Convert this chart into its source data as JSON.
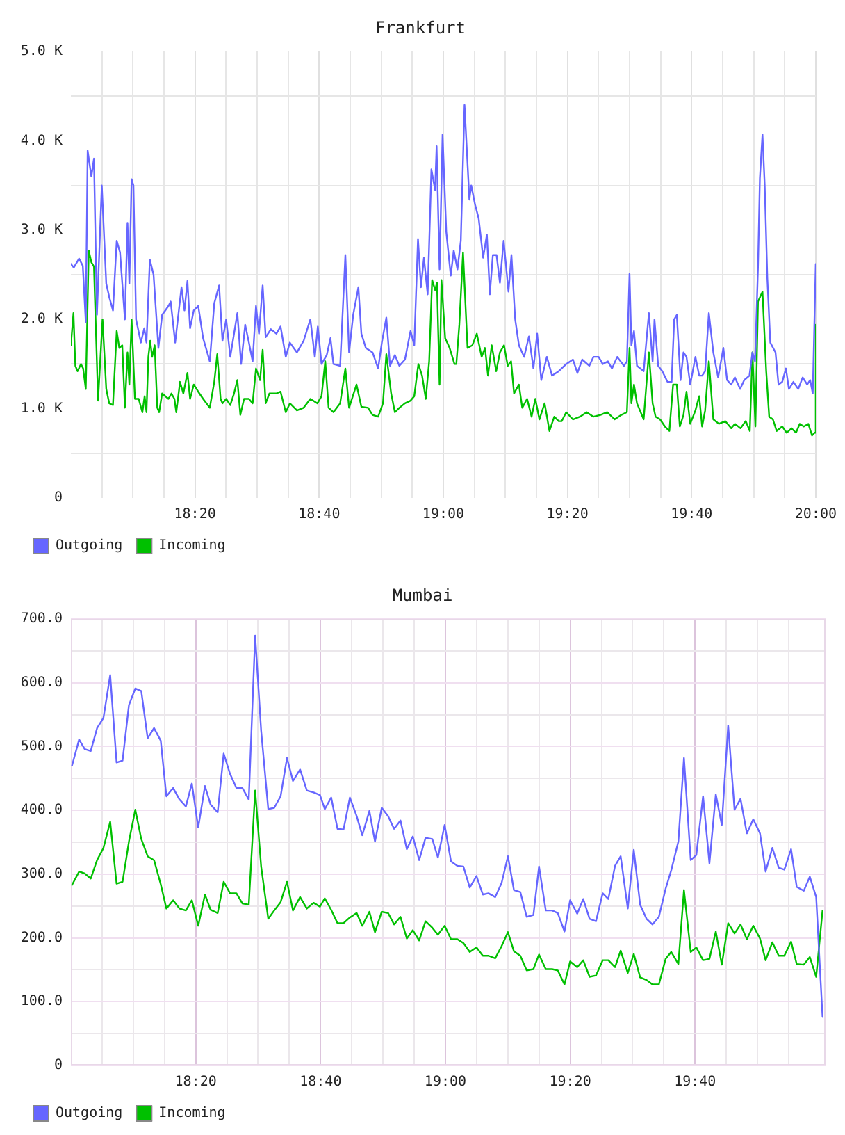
{
  "chart_data": [
    {
      "type": "line",
      "title": "Frankfurt",
      "xlim": [
        18,
        20
      ],
      "xticks": [
        {
          "value": 18.0833,
          "label": null
        },
        {
          "value": 18.1667,
          "label": null
        },
        {
          "value": 18.25,
          "label": null
        },
        {
          "value": 18.3333,
          "label": "18:20"
        },
        {
          "value": 18.4167,
          "label": null
        },
        {
          "value": 18.5,
          "label": null
        },
        {
          "value": 18.5833,
          "label": null
        },
        {
          "value": 18.6667,
          "label": "18:40"
        },
        {
          "value": 18.75,
          "label": null
        },
        {
          "value": 18.8333,
          "label": null
        },
        {
          "value": 18.9167,
          "label": null
        },
        {
          "value": 19,
          "label": "19:00"
        },
        {
          "value": 19.0833,
          "label": null
        },
        {
          "value": 19.1667,
          "label": null
        },
        {
          "value": 19.25,
          "label": null
        },
        {
          "value": 19.3333,
          "label": "19:20"
        },
        {
          "value": 19.4167,
          "label": null
        },
        {
          "value": 19.5,
          "label": null
        },
        {
          "value": 19.5833,
          "label": null
        },
        {
          "value": 19.6667,
          "label": "19:40"
        },
        {
          "value": 19.75,
          "label": null
        },
        {
          "value": 19.8333,
          "label": null
        },
        {
          "value": 19.9167,
          "label": null
        },
        {
          "value": 20,
          "label": "20:00"
        }
      ],
      "ylim": [
        0,
        5000
      ],
      "yticks": [
        0,
        {
          "value": 500,
          "label": null
        },
        {
          "value": 1000,
          "label": "1.0 K"
        },
        {
          "value": 1500,
          "label": null
        },
        {
          "value": 2000,
          "label": "2.0 K"
        },
        {
          "value": 2500,
          "label": null
        },
        {
          "value": 3000,
          "label": "3.0 K"
        },
        {
          "value": 3500,
          "label": null
        },
        {
          "value": 4000,
          "label": "4.0 K"
        },
        {
          "value": 4500,
          "label": null
        },
        {
          "value": 5000,
          "label": "5.0 K"
        }
      ],
      "grid": true,
      "legend": "bottom left",
      "series": [
        {
          "name": "Outgoing",
          "color": "#6666ff",
          "x": [
            18,
            18.008,
            18.022,
            18.032,
            18.04,
            18.045,
            18.055,
            18.062,
            18.07,
            18.083,
            18.095,
            18.103,
            18.113,
            18.123,
            18.132,
            18.145,
            18.152,
            18.157,
            18.163,
            18.168,
            18.175,
            18.188,
            18.197,
            18.203,
            18.212,
            18.222,
            18.235,
            18.245,
            18.262,
            18.268,
            18.28,
            18.297,
            18.305,
            18.313,
            18.32,
            18.33,
            18.342,
            18.355,
            18.373,
            18.385,
            18.398,
            18.407,
            18.417,
            18.428,
            18.447,
            18.457,
            18.468,
            18.478,
            18.488,
            18.497,
            18.505,
            18.515,
            18.523,
            18.537,
            18.552,
            18.563,
            18.577,
            18.588,
            18.607,
            18.625,
            18.643,
            18.655,
            18.663,
            18.673,
            18.687,
            18.697,
            18.705,
            18.723,
            18.737,
            18.747,
            18.758,
            18.772,
            18.78,
            18.792,
            18.81,
            18.825,
            18.835,
            18.847,
            18.857,
            18.87,
            18.882,
            18.897,
            18.912,
            18.922,
            18.932,
            18.94,
            18.948,
            18.958,
            18.968,
            18.978,
            18.982,
            18.99,
            18.998,
            19.008,
            19.02,
            19.028,
            19.038,
            19.047,
            19.057,
            19.07,
            19.075,
            19.085,
            19.095,
            19.107,
            19.117,
            19.125,
            19.133,
            19.143,
            19.152,
            19.162,
            19.175,
            19.183,
            19.193,
            19.203,
            19.217,
            19.23,
            19.242,
            19.252,
            19.263,
            19.278,
            19.292,
            19.31,
            19.33,
            19.348,
            19.36,
            19.373,
            19.392,
            19.403,
            19.417,
            19.428,
            19.442,
            19.453,
            19.467,
            19.485,
            19.493,
            19.5,
            19.505,
            19.512,
            19.52,
            19.538,
            19.552,
            19.562,
            19.567,
            19.577,
            19.588,
            19.602,
            19.613,
            19.62,
            19.627,
            19.637,
            19.645,
            19.653,
            19.663,
            19.677,
            19.687,
            19.695,
            19.703,
            19.713,
            19.725,
            19.738,
            19.752,
            19.762,
            19.773,
            19.783,
            19.797,
            19.808,
            19.822,
            19.83,
            19.837,
            19.845,
            19.85,
            19.857,
            19.863,
            19.87,
            19.878,
            19.892,
            19.9,
            19.91,
            19.92,
            19.928,
            19.94,
            19.953,
            19.965,
            19.977,
            19.985,
            19.992,
            20
          ],
          "values": [
            2620,
            2580,
            2680,
            2600,
            1970,
            3890,
            3600,
            3800,
            2050,
            3500,
            2400,
            2250,
            2100,
            2880,
            2750,
            2000,
            3080,
            2400,
            3570,
            3500,
            2000,
            1740,
            1900,
            1740,
            2670,
            2500,
            1680,
            2050,
            2150,
            2200,
            1740,
            2360,
            2100,
            2430,
            1900,
            2100,
            2150,
            1790,
            1530,
            2180,
            2380,
            1760,
            2000,
            1580,
            2070,
            1500,
            1940,
            1740,
            1530,
            2150,
            1840,
            2380,
            1800,
            1890,
            1840,
            1920,
            1580,
            1740,
            1630,
            1760,
            2000,
            1580,
            1920,
            1500,
            1600,
            1790,
            1500,
            1480,
            2720,
            1630,
            2050,
            2360,
            1840,
            1680,
            1630,
            1450,
            1740,
            2020,
            1480,
            1600,
            1480,
            1550,
            1870,
            1710,
            2900,
            2360,
            2690,
            2280,
            3680,
            3450,
            3940,
            2560,
            4070,
            2980,
            2490,
            2770,
            2560,
            2880,
            4400,
            3340,
            3500,
            3290,
            3130,
            2690,
            2950,
            2280,
            2720,
            2720,
            2410,
            2880,
            2310,
            2720,
            2000,
            1710,
            1580,
            1810,
            1450,
            1840,
            1320,
            1580,
            1370,
            1420,
            1500,
            1550,
            1400,
            1550,
            1480,
            1580,
            1580,
            1500,
            1530,
            1450,
            1580,
            1480,
            1530,
            2510,
            1710,
            1870,
            1480,
            1420,
            2070,
            1530,
            2000,
            1480,
            1420,
            1300,
            1300,
            2000,
            2050,
            1320,
            1630,
            1580,
            1270,
            1580,
            1370,
            1370,
            1420,
            2070,
            1630,
            1350,
            1680,
            1320,
            1270,
            1350,
            1220,
            1320,
            1370,
            1630,
            1530,
            2590,
            3580,
            4070,
            3500,
            2460,
            1740,
            1630,
            1270,
            1300,
            1450,
            1220,
            1300,
            1220,
            1350,
            1270,
            1320,
            1170,
            2620
          ]
        },
        {
          "name": "Incoming",
          "color": "#00c000",
          "x": [
            18,
            18.007,
            18.012,
            18.018,
            18.027,
            18.033,
            18.04,
            18.048,
            18.055,
            18.062,
            18.073,
            18.085,
            18.095,
            18.103,
            18.113,
            18.123,
            18.13,
            18.138,
            18.145,
            18.152,
            18.157,
            18.163,
            18.172,
            18.182,
            18.192,
            18.198,
            18.203,
            18.208,
            18.213,
            18.218,
            18.225,
            18.232,
            18.237,
            18.245,
            18.262,
            18.27,
            18.278,
            18.283,
            18.293,
            18.302,
            18.313,
            18.32,
            18.33,
            18.342,
            18.355,
            18.373,
            18.385,
            18.393,
            18.402,
            18.407,
            18.417,
            18.428,
            18.438,
            18.447,
            18.455,
            18.465,
            18.478,
            18.488,
            18.497,
            18.508,
            18.515,
            18.523,
            18.533,
            18.552,
            18.563,
            18.577,
            18.588,
            18.607,
            18.625,
            18.643,
            18.662,
            18.673,
            18.683,
            18.692,
            18.705,
            18.723,
            18.737,
            18.747,
            18.767,
            18.78,
            18.798,
            18.81,
            18.825,
            18.838,
            18.847,
            18.86,
            18.87,
            18.882,
            18.897,
            18.912,
            18.922,
            18.933,
            18.943,
            18.953,
            18.962,
            18.97,
            18.978,
            18.983,
            18.99,
            18.995,
            19.005,
            19.017,
            19.03,
            19.035,
            19.043,
            19.053,
            19.065,
            19.078,
            19.09,
            19.103,
            19.112,
            19.12,
            19.13,
            19.142,
            19.152,
            19.163,
            19.173,
            19.182,
            19.19,
            19.203,
            19.212,
            19.225,
            19.237,
            19.247,
            19.258,
            19.272,
            19.285,
            19.298,
            19.31,
            19.318,
            19.33,
            19.348,
            19.367,
            19.385,
            19.403,
            19.422,
            19.44,
            19.46,
            19.478,
            19.493,
            19.5,
            19.505,
            19.512,
            19.52,
            19.538,
            19.552,
            19.562,
            19.57,
            19.582,
            19.595,
            19.607,
            19.617,
            19.627,
            19.635,
            19.645,
            19.653,
            19.663,
            19.677,
            19.687,
            19.695,
            19.703,
            19.713,
            19.725,
            19.74,
            19.757,
            19.773,
            19.783,
            19.798,
            19.812,
            19.823,
            19.83,
            19.838,
            19.845,
            19.857,
            19.867,
            19.875,
            19.885,
            19.895,
            19.91,
            19.922,
            19.935,
            19.947,
            19.957,
            19.968,
            19.98,
            19.99,
            19.997,
            20
          ],
          "values": [
            1710,
            2070,
            1480,
            1420,
            1500,
            1450,
            1220,
            2770,
            2640,
            2590,
            1090,
            2000,
            1220,
            1060,
            1040,
            1870,
            1680,
            1710,
            1010,
            1630,
            1270,
            2000,
            1110,
            1110,
            960,
            1140,
            960,
            1580,
            1760,
            1580,
            1710,
            1010,
            960,
            1170,
            1110,
            1170,
            1110,
            960,
            1300,
            1170,
            1400,
            1110,
            1270,
            1190,
            1110,
            1010,
            1300,
            1610,
            1110,
            1060,
            1110,
            1040,
            1170,
            1320,
            930,
            1110,
            1110,
            1060,
            1450,
            1320,
            1660,
            1060,
            1170,
            1170,
            1190,
            960,
            1060,
            980,
            1010,
            1110,
            1060,
            1140,
            1530,
            1010,
            960,
            1060,
            1450,
            1010,
            1270,
            1020,
            1010,
            930,
            910,
            1060,
            1610,
            1170,
            960,
            1010,
            1060,
            1090,
            1140,
            1500,
            1370,
            1110,
            1530,
            2440,
            2330,
            2410,
            1270,
            2440,
            1790,
            1680,
            1500,
            1500,
            1940,
            2750,
            1680,
            1710,
            1840,
            1580,
            1680,
            1370,
            1710,
            1420,
            1630,
            1710,
            1480,
            1530,
            1170,
            1270,
            1010,
            1110,
            910,
            1110,
            880,
            1060,
            750,
            910,
            860,
            860,
            960,
            880,
            910,
            960,
            910,
            930,
            960,
            880,
            930,
            960,
            1680,
            1060,
            1270,
            1060,
            880,
            1630,
            1060,
            910,
            880,
            800,
            750,
            1270,
            1270,
            800,
            930,
            1190,
            830,
            980,
            1140,
            800,
            980,
            1530,
            880,
            830,
            860,
            780,
            830,
            780,
            860,
            750,
            1630,
            800,
            2200,
            2310,
            1420,
            910,
            880,
            750,
            800,
            730,
            780,
            730,
            830,
            800,
            830,
            700,
            730,
            1940
          ]
        }
      ]
    },
    {
      "type": "line",
      "title": "Mumbai",
      "x": [
        18.003,
        18.022,
        18.037,
        18.053,
        18.07,
        18.087,
        18.105,
        18.122,
        18.138,
        18.155,
        18.172,
        18.188,
        18.205,
        18.222,
        18.24,
        18.255,
        18.273,
        18.29,
        18.307,
        18.323,
        18.34,
        18.358,
        18.373,
        18.392,
        18.408,
        18.425,
        18.442,
        18.458,
        18.475,
        18.492,
        18.508,
        18.527,
        18.543,
        18.56,
        18.577,
        18.593,
        18.612,
        18.63,
        18.648,
        18.665,
        18.678,
        18.695,
        18.712,
        18.728,
        18.745,
        18.763,
        18.778,
        18.797,
        18.812,
        18.83,
        18.847,
        18.863,
        18.88,
        18.897,
        18.913,
        18.93,
        18.947,
        18.965,
        18.98,
        18.998,
        19.015,
        19.032,
        19.048,
        19.065,
        19.083,
        19.1,
        19.115,
        19.133,
        19.15,
        19.167,
        19.183,
        19.2,
        19.217,
        19.235,
        19.25,
        19.268,
        19.285,
        19.3,
        19.318,
        19.333,
        19.352,
        19.368,
        19.385,
        19.402,
        19.42,
        19.435,
        19.453,
        19.468,
        19.487,
        19.503,
        19.52,
        19.537,
        19.553,
        19.57,
        19.588,
        19.603,
        19.622,
        19.637,
        19.655,
        19.67,
        19.688,
        19.705,
        19.722,
        19.738,
        19.755,
        19.772,
        19.788,
        19.805,
        19.822,
        19.84,
        19.855,
        19.873,
        19.89,
        19.905,
        19.923,
        19.938,
        19.957,
        19.973,
        19.99,
        20.007
      ],
      "xlim": [
        18,
        20.015
      ],
      "xticks": [
        {
          "value": 18.0833,
          "label": null
        },
        {
          "value": 18.1667,
          "label": null
        },
        {
          "value": 18.25,
          "label": null
        },
        {
          "value": 18.3333,
          "label": "18:20"
        },
        {
          "value": 18.4167,
          "label": null
        },
        {
          "value": 18.5,
          "label": null
        },
        {
          "value": 18.5833,
          "label": null
        },
        {
          "value": 18.6667,
          "label": "18:40"
        },
        {
          "value": 18.75,
          "label": null
        },
        {
          "value": 18.8333,
          "label": null
        },
        {
          "value": 18.9167,
          "label": null
        },
        {
          "value": 19,
          "label": "19:00"
        },
        {
          "value": 19.0833,
          "label": null
        },
        {
          "value": 19.1667,
          "label": null
        },
        {
          "value": 19.25,
          "label": null
        },
        {
          "value": 19.3333,
          "label": "19:20"
        },
        {
          "value": 19.4167,
          "label": null
        },
        {
          "value": 19.5,
          "label": null
        },
        {
          "value": 19.5833,
          "label": null
        },
        {
          "value": 19.6667,
          "label": "19:40"
        },
        {
          "value": 19.75,
          "label": null
        },
        {
          "value": 19.8333,
          "label": null
        },
        {
          "value": 19.9167,
          "label": null
        }
      ],
      "ylim": [
        0,
        700
      ],
      "yticks": [
        0,
        {
          "value": 50,
          "label": null
        },
        {
          "value": 100,
          "label": "100.0"
        },
        {
          "value": 150,
          "label": null
        },
        {
          "value": 200,
          "label": "200.0"
        },
        {
          "value": 250,
          "label": null
        },
        {
          "value": 300,
          "label": "300.0"
        },
        {
          "value": 350,
          "label": null
        },
        {
          "value": 400,
          "label": "400.0"
        },
        {
          "value": 450,
          "label": null
        },
        {
          "value": 500,
          "label": "500.0"
        },
        {
          "value": 550,
          "label": null
        },
        {
          "value": 600,
          "label": "600.0"
        },
        {
          "value": 650,
          "label": null
        },
        {
          "value": 700,
          "label": "700.0"
        }
      ],
      "grid": true,
      "legend": "bottom left",
      "series": [
        {
          "name": "Outgoing",
          "color": "#6666ff",
          "values": [
            470,
            511,
            496,
            493,
            529,
            545,
            612,
            475,
            478,
            565,
            591,
            587,
            513,
            529,
            509,
            422,
            435,
            417,
            406,
            442,
            373,
            438,
            409,
            397,
            489,
            457,
            435,
            435,
            417,
            674,
            525,
            402,
            404,
            422,
            482,
            446,
            464,
            431,
            428,
            424,
            402,
            420,
            371,
            370,
            420,
            391,
            361,
            399,
            351,
            404,
            391,
            371,
            384,
            339,
            359,
            322,
            357,
            355,
            326,
            377,
            320,
            313,
            312,
            279,
            297,
            268,
            270,
            264,
            286,
            328,
            275,
            272,
            233,
            236,
            312,
            243,
            243,
            239,
            210,
            259,
            238,
            261,
            230,
            226,
            270,
            261,
            313,
            328,
            246,
            338,
            252,
            230,
            221,
            233,
            277,
            306,
            351,
            482,
            322,
            330,
            422,
            317,
            425,
            377,
            533,
            401,
            418,
            364,
            386,
            364,
            304,
            341,
            310,
            307,
            339,
            280,
            274,
            296,
            264,
            76
          ]
        },
        {
          "name": "Incoming",
          "color": "#00c000",
          "values": [
            283,
            304,
            301,
            293,
            322,
            341,
            382,
            285,
            288,
            351,
            401,
            355,
            328,
            322,
            284,
            246,
            259,
            246,
            243,
            259,
            219,
            268,
            244,
            239,
            288,
            270,
            270,
            254,
            252,
            431,
            312,
            230,
            243,
            256,
            288,
            243,
            264,
            246,
            255,
            249,
            262,
            244,
            223,
            223,
            232,
            239,
            219,
            241,
            209,
            241,
            239,
            221,
            233,
            199,
            212,
            196,
            226,
            216,
            205,
            219,
            198,
            198,
            192,
            178,
            185,
            172,
            172,
            168,
            187,
            209,
            179,
            172,
            149,
            151,
            174,
            151,
            151,
            149,
            127,
            163,
            154,
            165,
            139,
            141,
            165,
            165,
            154,
            180,
            145,
            175,
            138,
            134,
            127,
            127,
            167,
            178,
            159,
            275,
            178,
            185,
            165,
            167,
            210,
            158,
            223,
            207,
            221,
            198,
            219,
            199,
            165,
            193,
            172,
            172,
            194,
            159,
            158,
            170,
            139,
            243
          ]
        }
      ]
    }
  ]
}
